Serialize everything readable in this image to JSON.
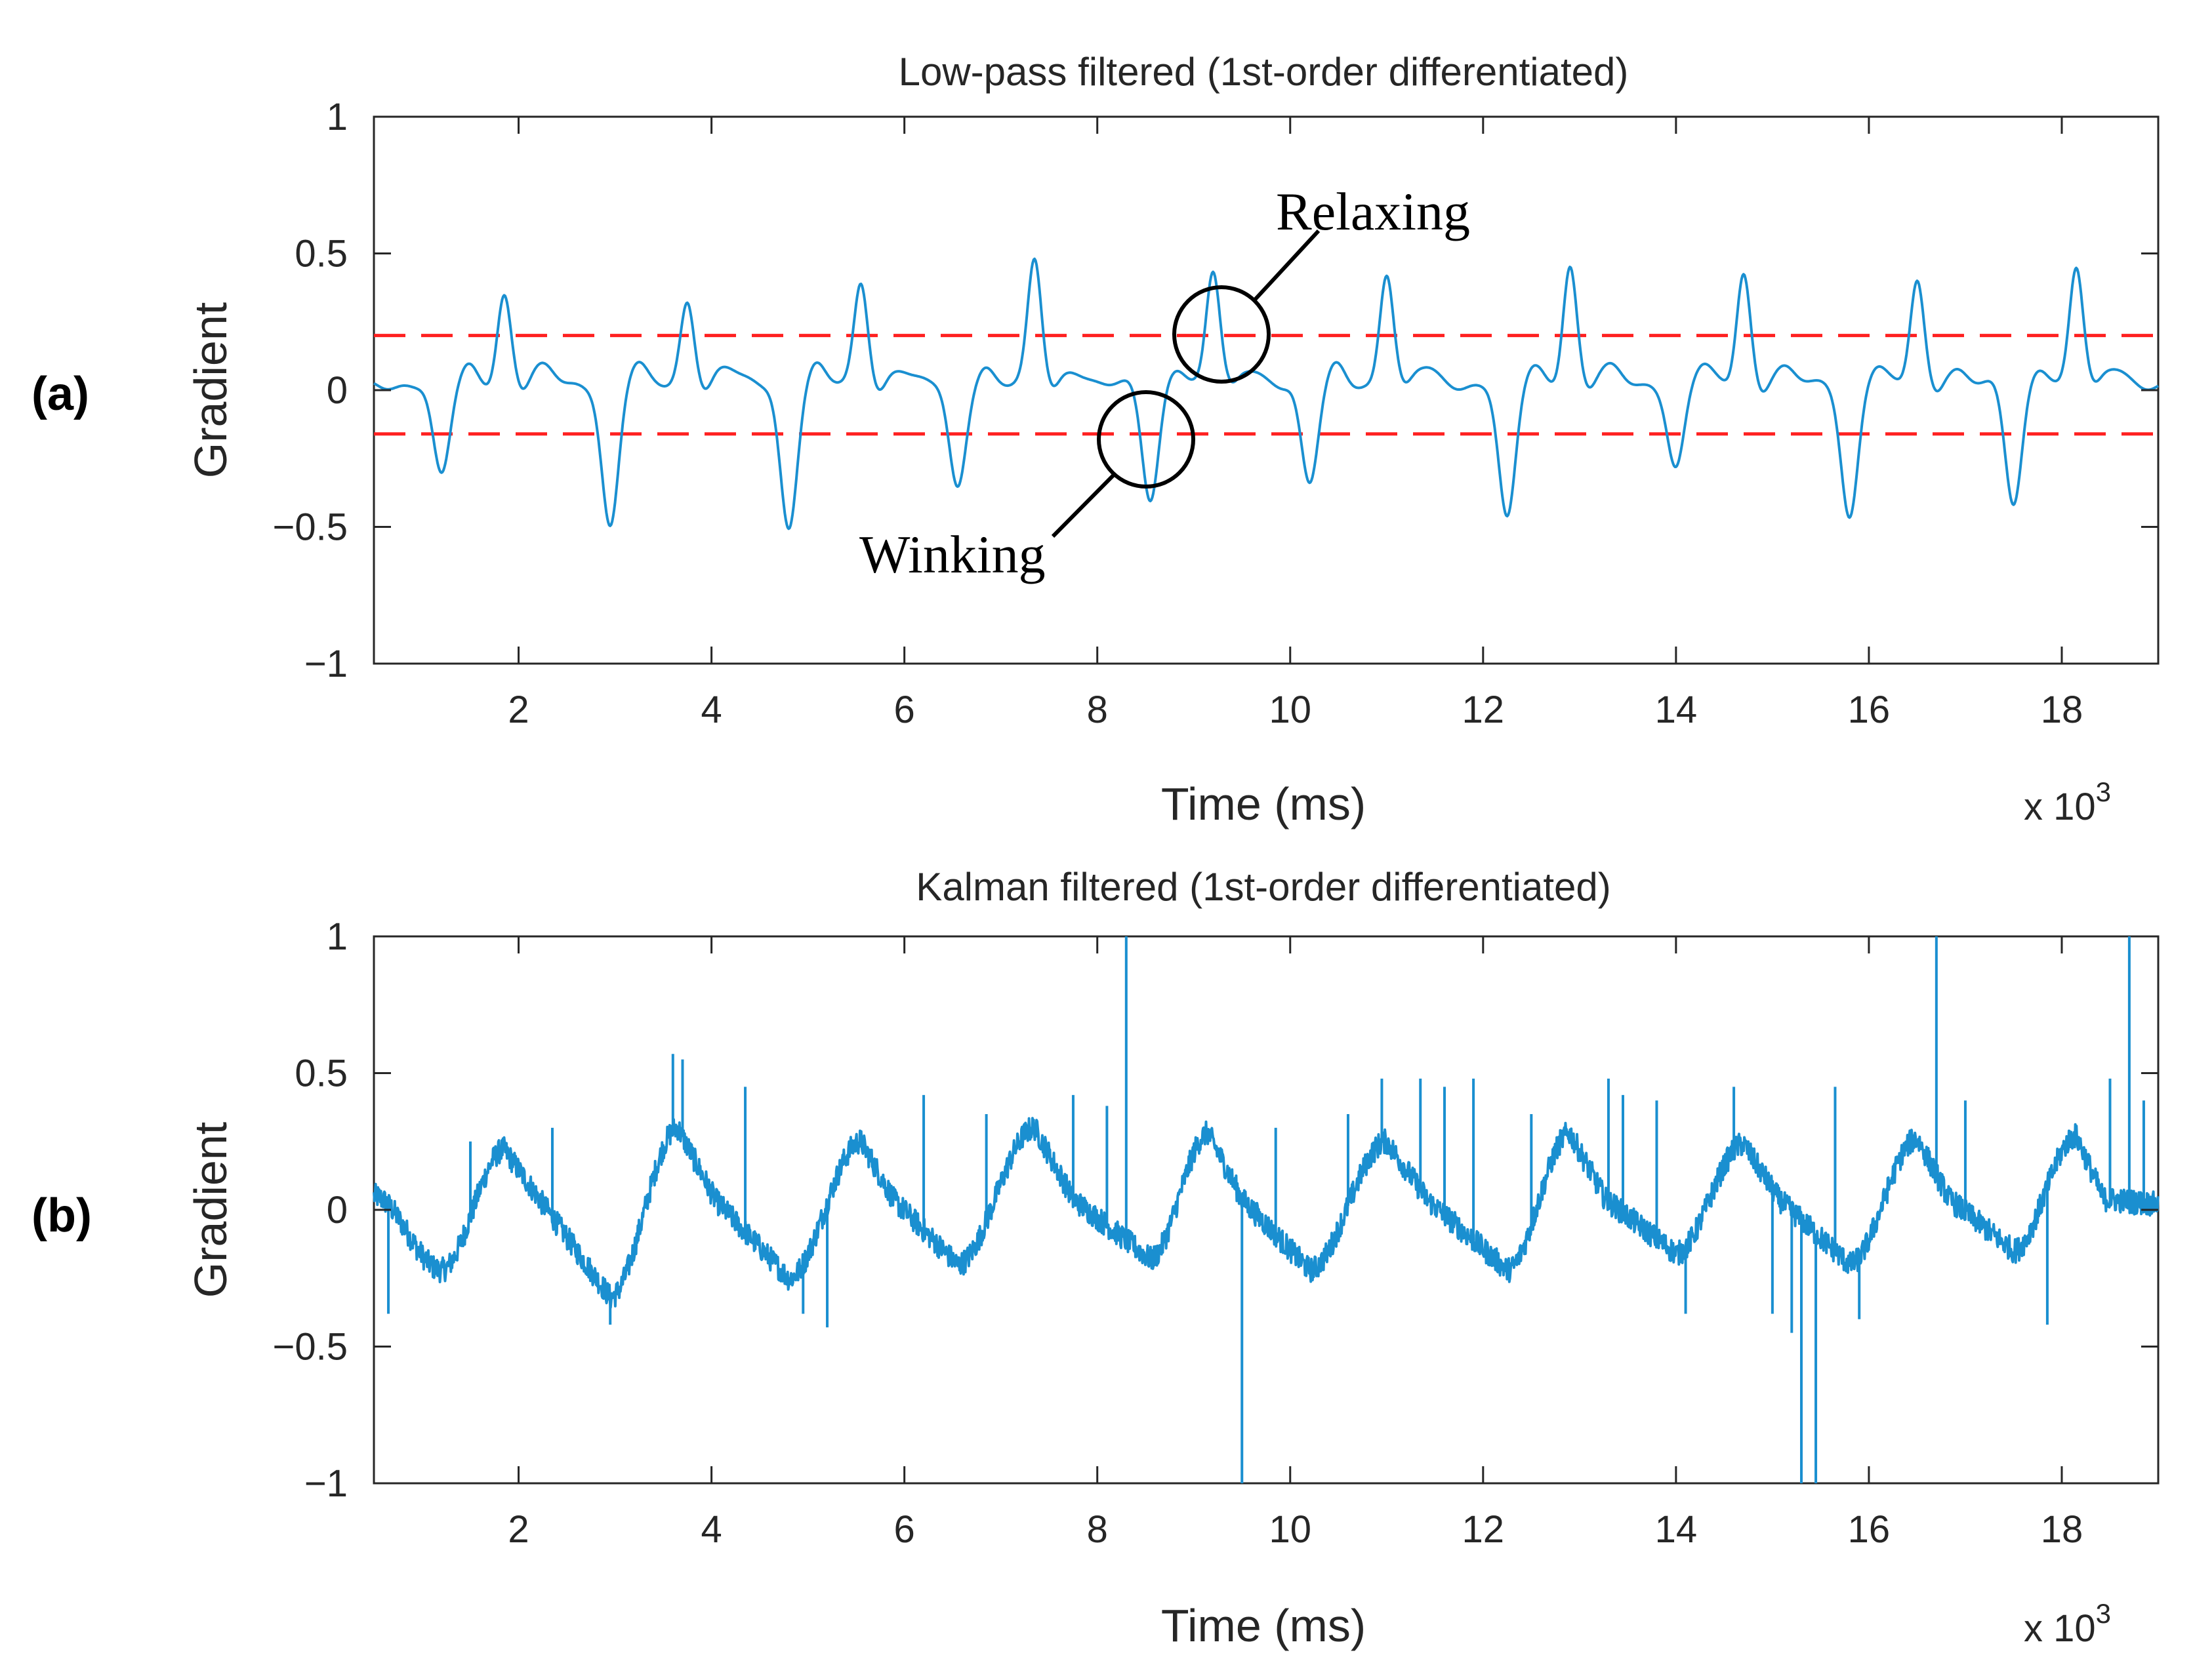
{
  "colors": {
    "signal": "#1a8fd0",
    "threshold": "#ff2020",
    "axis": "#262626",
    "annotation": "#000000"
  },
  "chart_data": [
    {
      "type": "line",
      "panel_label": "(a)",
      "title": "Low-pass filtered (1st-order differentiated)",
      "xlabel": "Time (ms)",
      "ylabel": "Gradient",
      "x_exponent_label": "x 10",
      "x_exponent_power": "3",
      "xlim": [
        500,
        19000
      ],
      "ylim": [
        -1,
        1
      ],
      "xticks": [
        2000,
        4000,
        6000,
        8000,
        10000,
        12000,
        14000,
        16000,
        18000
      ],
      "xtick_labels": [
        "2",
        "4",
        "6",
        "8",
        "10",
        "12",
        "14",
        "16",
        "18"
      ],
      "yticks": [
        -1,
        -0.5,
        0,
        0.5,
        1
      ],
      "ytick_labels": [
        "−1",
        "−0.5",
        "0",
        "0.5",
        "1"
      ],
      "grid": false,
      "thresholds": [
        0.2,
        -0.16
      ],
      "baseline": 0.02,
      "troughs": [
        {
          "x": 1200,
          "y": -0.34
        },
        {
          "x": 2950,
          "y": -0.52
        },
        {
          "x": 4800,
          "y": -0.52
        },
        {
          "x": 6550,
          "y": -0.38
        },
        {
          "x": 8550,
          "y": -0.42
        },
        {
          "x": 10200,
          "y": -0.37
        },
        {
          "x": 12250,
          "y": -0.5
        },
        {
          "x": 14000,
          "y": -0.3
        },
        {
          "x": 15800,
          "y": -0.48
        },
        {
          "x": 17500,
          "y": -0.44
        }
      ],
      "peaks": [
        {
          "x": 1850,
          "y": 0.33
        },
        {
          "x": 3750,
          "y": 0.31
        },
        {
          "x": 5550,
          "y": 0.37
        },
        {
          "x": 7350,
          "y": 0.45
        },
        {
          "x": 9200,
          "y": 0.41
        },
        {
          "x": 11000,
          "y": 0.41
        },
        {
          "x": 12900,
          "y": 0.44
        },
        {
          "x": 14700,
          "y": 0.41
        },
        {
          "x": 16500,
          "y": 0.37
        },
        {
          "x": 18150,
          "y": 0.43
        }
      ],
      "annotations": [
        {
          "text": "Relaxing",
          "x": 9200,
          "y": 0.2
        },
        {
          "text": "Winking",
          "x": 8550,
          "y": -0.16
        }
      ]
    },
    {
      "type": "line",
      "panel_label": "(b)",
      "title": "Kalman filtered (1st-order differentiated)",
      "xlabel": "Time (ms)",
      "ylabel": "Gradient",
      "x_exponent_label": "x 10",
      "x_exponent_power": "3",
      "xlim": [
        500,
        19000
      ],
      "ylim": [
        -1,
        1
      ],
      "xticks": [
        2000,
        4000,
        6000,
        8000,
        10000,
        12000,
        14000,
        16000,
        18000
      ],
      "xtick_labels": [
        "2",
        "4",
        "6",
        "8",
        "10",
        "12",
        "14",
        "16",
        "18"
      ],
      "yticks": [
        -1,
        -0.5,
        0,
        0.5,
        1
      ],
      "ytick_labels": [
        "−1",
        "−0.5",
        "0",
        "0.5",
        "1"
      ],
      "grid": false,
      "cycle_troughs": [
        {
          "x": 1200,
          "y": -0.22
        },
        {
          "x": 2950,
          "y": -0.32
        },
        {
          "x": 4800,
          "y": -0.25
        },
        {
          "x": 6550,
          "y": -0.2
        },
        {
          "x": 8550,
          "y": -0.18
        },
        {
          "x": 10200,
          "y": -0.22
        },
        {
          "x": 12250,
          "y": -0.22
        },
        {
          "x": 14000,
          "y": -0.16
        },
        {
          "x": 15800,
          "y": -0.2
        },
        {
          "x": 17500,
          "y": -0.15
        }
      ],
      "cycle_peaks": [
        {
          "x": 1850,
          "y": 0.22
        },
        {
          "x": 3650,
          "y": 0.3
        },
        {
          "x": 5550,
          "y": 0.25
        },
        {
          "x": 7350,
          "y": 0.3
        },
        {
          "x": 9150,
          "y": 0.28
        },
        {
          "x": 11000,
          "y": 0.25
        },
        {
          "x": 12900,
          "y": 0.28
        },
        {
          "x": 14700,
          "y": 0.24
        },
        {
          "x": 16500,
          "y": 0.26
        },
        {
          "x": 18150,
          "y": 0.27
        }
      ],
      "spikes": [
        {
          "x": 8300,
          "y": 1.0
        },
        {
          "x": 9500,
          "y": -1.0
        },
        {
          "x": 15300,
          "y": -1.0
        },
        {
          "x": 15450,
          "y": -1.0
        },
        {
          "x": 16700,
          "y": 1.0
        },
        {
          "x": 18700,
          "y": 1.0
        },
        {
          "x": 3600,
          "y": 0.57
        },
        {
          "x": 3700,
          "y": 0.55
        },
        {
          "x": 2950,
          "y": -0.42
        },
        {
          "x": 4350,
          "y": 0.45
        },
        {
          "x": 5200,
          "y": -0.43
        },
        {
          "x": 4950,
          "y": -0.38
        },
        {
          "x": 6200,
          "y": 0.42
        },
        {
          "x": 7750,
          "y": 0.42
        },
        {
          "x": 8100,
          "y": 0.38
        },
        {
          "x": 9850,
          "y": 0.3
        },
        {
          "x": 10950,
          "y": 0.48
        },
        {
          "x": 11350,
          "y": 0.48
        },
        {
          "x": 11600,
          "y": 0.45
        },
        {
          "x": 11900,
          "y": 0.48
        },
        {
          "x": 12500,
          "y": 0.35
        },
        {
          "x": 13300,
          "y": 0.48
        },
        {
          "x": 13450,
          "y": 0.42
        },
        {
          "x": 13800,
          "y": 0.4
        },
        {
          "x": 14100,
          "y": -0.38
        },
        {
          "x": 14600,
          "y": 0.45
        },
        {
          "x": 15000,
          "y": -0.38
        },
        {
          "x": 15200,
          "y": -0.45
        },
        {
          "x": 15650,
          "y": 0.45
        },
        {
          "x": 15900,
          "y": -0.4
        },
        {
          "x": 17000,
          "y": 0.4
        },
        {
          "x": 17850,
          "y": -0.42
        },
        {
          "x": 18500,
          "y": 0.48
        },
        {
          "x": 18850,
          "y": 0.4
        },
        {
          "x": 650,
          "y": -0.38
        },
        {
          "x": 1500,
          "y": 0.25
        },
        {
          "x": 2350,
          "y": 0.3
        },
        {
          "x": 6850,
          "y": 0.35
        },
        {
          "x": 10600,
          "y": 0.35
        }
      ]
    }
  ]
}
